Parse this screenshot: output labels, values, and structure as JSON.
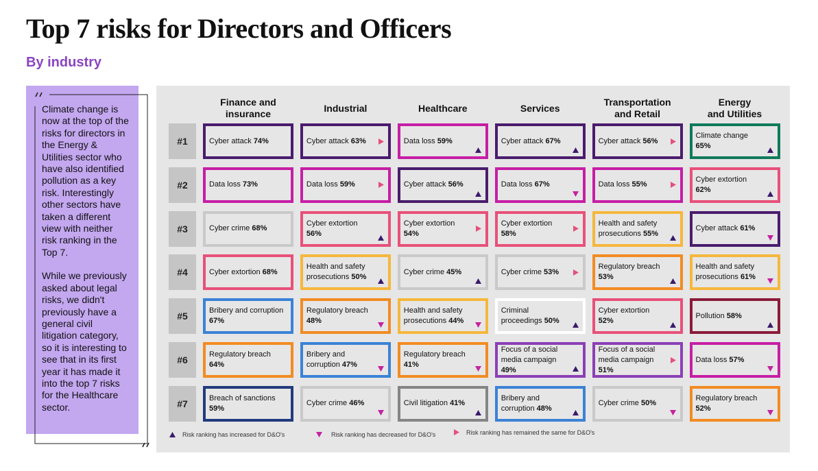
{
  "title": "Top 7 risks for Directors and Officers",
  "subtitle": "By industry",
  "quote": {
    "paragraphs": [
      "Climate change is now at the top of the risks for directors in the Energy & Utilities sector who have also identified pollution as a key risk. Interestingly other sectors have taken a different view with neither risk ranking in the Top 7.",
      "While we previously asked about legal risks, we didn't previously have a general civil litigation category, so it is interesting to see that in its first year it has made it into the top 7 risks for the Healthcare sector."
    ]
  },
  "ranks": [
    "#1",
    "#2",
    "#3",
    "#4",
    "#5",
    "#6",
    "#7"
  ],
  "trend_colors": {
    "up": "#3b1a6b",
    "down": "#c4229f",
    "same": "#e5507c"
  },
  "columns": [
    {
      "header": [
        "Finance and",
        "insurance"
      ],
      "cells": [
        {
          "risk": "Cyber attack",
          "value": "74%",
          "color": "#4a1c6d"
        },
        {
          "risk": "Data loss",
          "value": "73%",
          "color": "#c61ea5"
        },
        {
          "risk": "Cyber crime",
          "value": "68%",
          "color": "#c9c9c9"
        },
        {
          "risk": "Cyber extortion",
          "value": "68%",
          "color": "#e8507a"
        },
        {
          "risk": "Bribery and corruption",
          "value": "67%",
          "color": "#3b82d6"
        },
        {
          "risk": "Regulatory breach",
          "value": "64%",
          "color": "#f28b22"
        },
        {
          "risk": "Breach of sanctions",
          "value": "59%",
          "color": "#213b7d"
        }
      ]
    },
    {
      "header": [
        "Industrial"
      ],
      "cells": [
        {
          "risk": "Cyber attack",
          "value": "63%",
          "color": "#4a1c6d",
          "trend": "same"
        },
        {
          "risk": "Data loss",
          "value": "59%",
          "color": "#c61ea5",
          "trend": "same"
        },
        {
          "risk": "Cyber extortion",
          "value": "56%",
          "color": "#e8507a",
          "trend": "up"
        },
        {
          "risk": "Health and safety prosecutions",
          "value": "50%",
          "color": "#f5b73c",
          "trend": "up"
        },
        {
          "risk": "Regulatory breach",
          "value": "48%",
          "color": "#f28b22",
          "trend": "down"
        },
        {
          "risk": "Bribery and corruption",
          "value": "47%",
          "color": "#3b82d6",
          "trend": "down"
        },
        {
          "risk": "Cyber crime",
          "value": "46%",
          "color": "#c9c9c9",
          "trend": "down"
        }
      ]
    },
    {
      "header": [
        "Healthcare"
      ],
      "cells": [
        {
          "risk": "Data loss",
          "value": "59%",
          "color": "#c61ea5",
          "trend": "up"
        },
        {
          "risk": "Cyber attack",
          "value": "56%",
          "color": "#4a1c6d",
          "trend": "up"
        },
        {
          "risk": "Cyber extortion",
          "value": "54%",
          "color": "#e8507a",
          "trend": "same"
        },
        {
          "risk": "Cyber crime",
          "value": "45%",
          "color": "#c9c9c9",
          "trend": "up"
        },
        {
          "risk": "Health and safety prosecutions",
          "value": "44%",
          "color": "#f5b73c",
          "trend": "down"
        },
        {
          "risk": "Regulatory breach",
          "value": "41%",
          "color": "#f28b22",
          "trend": "down"
        },
        {
          "risk": "Civil litigation",
          "value": "41%",
          "color": "#858585",
          "trend": "up"
        }
      ]
    },
    {
      "header": [
        "Services"
      ],
      "cells": [
        {
          "risk": "Cyber attack",
          "value": "67%",
          "color": "#4a1c6d",
          "trend": "up"
        },
        {
          "risk": "Data loss",
          "value": "67%",
          "color": "#c61ea5",
          "trend": "down"
        },
        {
          "risk": "Cyber extortion",
          "value": "58%",
          "color": "#e8507a",
          "trend": "same"
        },
        {
          "risk": "Cyber crime",
          "value": "53%",
          "color": "#c9c9c9",
          "trend": "same"
        },
        {
          "risk": "Criminal proceedings",
          "value": "50%",
          "color": "#ffffff",
          "trend": "up"
        },
        {
          "risk": "Focus of a social media campaign",
          "value": "49%",
          "color": "#8b3fb6",
          "trend": "up"
        },
        {
          "risk": "Bribery and corruption",
          "value": "48%",
          "color": "#3b82d6",
          "trend": "up"
        }
      ]
    },
    {
      "header": [
        "Transportation",
        "and Retail"
      ],
      "cells": [
        {
          "risk": "Cyber attack",
          "value": "56%",
          "color": "#4a1c6d",
          "trend": "same"
        },
        {
          "risk": "Data loss",
          "value": "55%",
          "color": "#c61ea5",
          "trend": "same"
        },
        {
          "risk": "Health and safety prosecutions",
          "value": "55%",
          "color": "#f5b73c",
          "trend": "up"
        },
        {
          "risk": "Regulatory breach",
          "value": "53%",
          "color": "#f28b22",
          "trend": "up"
        },
        {
          "risk": "Cyber extortion",
          "value": "52%",
          "color": "#e8507a",
          "trend": "up"
        },
        {
          "risk": "Focus of a social media campaign",
          "value": "51%",
          "color": "#8b3fb6",
          "trend": "same"
        },
        {
          "risk": "Cyber crime",
          "value": "50%",
          "color": "#c9c9c9",
          "trend": "down"
        }
      ]
    },
    {
      "header": [
        "Energy",
        "and Utilities"
      ],
      "cells": [
        {
          "risk": "Climate change",
          "value": "65%",
          "color": "#0f7a5b",
          "trend": "up"
        },
        {
          "risk": "Cyber extortion",
          "value": "62%",
          "color": "#e8507a",
          "trend": "up"
        },
        {
          "risk": "Cyber attack",
          "value": "61%",
          "color": "#4a1c6d",
          "trend": "down"
        },
        {
          "risk": "Health and safety prosecutions",
          "value": "61%",
          "color": "#f5b73c",
          "trend": "down"
        },
        {
          "risk": "Pollution",
          "value": "58%",
          "color": "#8a1b3b",
          "trend": "up"
        },
        {
          "risk": "Data loss",
          "value": "57%",
          "color": "#c61ea5",
          "trend": "down"
        },
        {
          "risk": "Regulatory breach",
          "value": "52%",
          "color": "#f28b22",
          "trend": "down"
        }
      ]
    }
  ],
  "legend": [
    {
      "trend": "up",
      "label": "Risk ranking has increased for D&O's"
    },
    {
      "trend": "down",
      "label": "Risk ranking has decreased for D&O's"
    },
    {
      "trend": "same",
      "label": "Risk ranking has remained the same for D&O's"
    }
  ]
}
